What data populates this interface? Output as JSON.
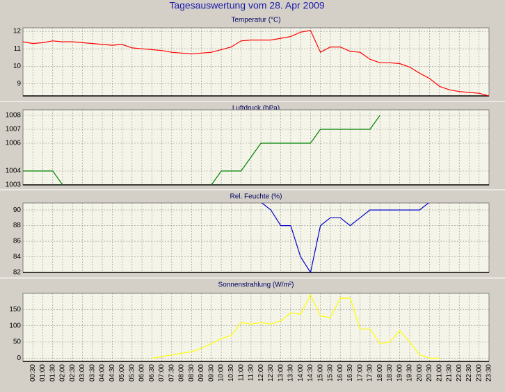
{
  "title": "Tagesauswertung vom 28. Apr 2009",
  "x_axis": {
    "categories": [
      null,
      "00:30",
      "01:00",
      "01:30",
      "02:00",
      "02:30",
      "03:00",
      "03:30",
      "04:00",
      "04:30",
      "05:00",
      "05:30",
      "06:00",
      "06:30",
      "07:00",
      "07:30",
      "08:00",
      "08:30",
      "09:00",
      "09:30",
      "10:00",
      "10:30",
      "11:00",
      "11:30",
      "12:00",
      "12:30",
      "13:00",
      "13:30",
      "14:00",
      "14:30",
      "15:00",
      "15:30",
      "16:00",
      "16:30",
      "17:00",
      "17:30",
      "18:00",
      "18:30",
      "19:00",
      "19:30",
      "20:00",
      "20:30",
      "21:00",
      "21:30",
      "22:00",
      "22:30",
      "23:00",
      "23:30"
    ]
  },
  "chart_data": [
    {
      "type": "line",
      "title": "Temperatur (°C)",
      "color": "#ff0000",
      "values": [
        11.4,
        11.3,
        11.35,
        11.45,
        11.4,
        11.4,
        11.35,
        11.3,
        11.25,
        11.2,
        11.25,
        11.05,
        11.0,
        10.95,
        10.9,
        10.8,
        10.75,
        10.7,
        10.75,
        10.8,
        10.95,
        11.1,
        11.45,
        11.5,
        11.5,
        11.5,
        11.6,
        11.7,
        11.95,
        12.05,
        10.8,
        11.1,
        11.1,
        10.85,
        10.8,
        10.4,
        10.2,
        10.2,
        10.15,
        9.95,
        9.6,
        9.3,
        8.85,
        8.65,
        8.55,
        8.5,
        8.45,
        8.3
      ],
      "ylim": [
        8.3,
        12.2
      ],
      "yticks": [
        9,
        10,
        11,
        12
      ],
      "grid": true
    },
    {
      "type": "line",
      "title": "Luftdruck (hPa)",
      "color": "#008000",
      "values": [
        1004,
        1004,
        1004,
        1004,
        1003,
        null,
        null,
        null,
        null,
        null,
        null,
        null,
        null,
        null,
        null,
        null,
        null,
        null,
        null,
        1003,
        1004,
        1004,
        1004,
        1005,
        1006,
        1006,
        1006,
        1006,
        1006,
        1006,
        1007,
        1007,
        1007,
        1007,
        1007,
        1007,
        1008,
        null,
        null,
        null,
        null,
        null,
        null,
        null,
        null,
        null,
        null,
        null
      ],
      "ylim": [
        1003,
        1008.4
      ],
      "yticks": [
        1003,
        1004,
        1006,
        1007,
        1008
      ],
      "grid": true
    },
    {
      "type": "line",
      "title": "Rel. Feuchte (%)",
      "color": "#0000cc",
      "values": [
        null,
        null,
        null,
        null,
        null,
        null,
        null,
        null,
        null,
        null,
        null,
        null,
        null,
        null,
        null,
        null,
        null,
        null,
        null,
        null,
        null,
        null,
        null,
        null,
        91,
        90,
        88,
        88,
        84,
        82,
        88,
        89,
        89,
        88,
        89,
        90,
        90,
        90,
        90,
        90,
        90,
        91,
        null,
        null,
        null,
        null,
        null,
        null
      ],
      "ylim": [
        82,
        90.9
      ],
      "yticks": [
        82,
        84,
        86,
        88,
        90
      ],
      "grid": true
    },
    {
      "type": "line",
      "title": "Sonnenstrahlung (W/m²)",
      "color": "#ffff00",
      "values": [
        null,
        null,
        null,
        null,
        null,
        null,
        null,
        null,
        null,
        null,
        null,
        null,
        null,
        0,
        5,
        10,
        15,
        20,
        30,
        45,
        60,
        70,
        110,
        105,
        110,
        105,
        115,
        140,
        135,
        195,
        130,
        125,
        185,
        185,
        90,
        90,
        45,
        50,
        85,
        50,
        10,
        0,
        0,
        null,
        null,
        null,
        null,
        null
      ],
      "ylim": [
        -10,
        200
      ],
      "yticks": [
        0,
        50,
        100,
        150
      ],
      "grid": true
    }
  ]
}
